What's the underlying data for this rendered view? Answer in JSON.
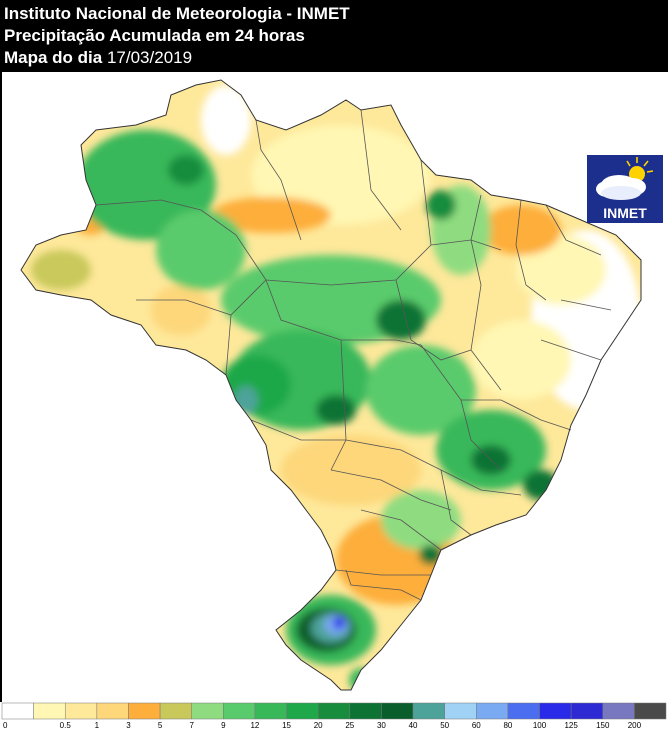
{
  "header": {
    "line1": "Instituto Nacional de Meteorologia - INMET",
    "line2": "Precipitação Acumulada em 24 horas",
    "line3_label": "Mapa do dia",
    "line3_date": "17/03/2019"
  },
  "logo": {
    "text": "INMET",
    "icon": "sun-cloud-icon"
  },
  "colors": {
    "bins": [
      "#ffffff",
      "#fff7b3",
      "#fee89a",
      "#fdd77a",
      "#fdae3b",
      "#c9c95b",
      "#8fdc80",
      "#5acb6c",
      "#39b85a",
      "#1fa84a",
      "#168c3c",
      "#0d7335",
      "#0a5e2c",
      "#4da39a",
      "#9fd2f5",
      "#7aaaf2",
      "#4b6df0",
      "#2a2be8",
      "#2d2ad4",
      "#7878c0",
      "#4a4a4a"
    ]
  },
  "legend": {
    "ticks": [
      "0",
      "0.5",
      "1",
      "3",
      "5",
      "7",
      "9",
      "12",
      "15",
      "20",
      "25",
      "30",
      "40",
      "50",
      "60",
      "80",
      "100",
      "125",
      "150",
      "200"
    ]
  }
}
